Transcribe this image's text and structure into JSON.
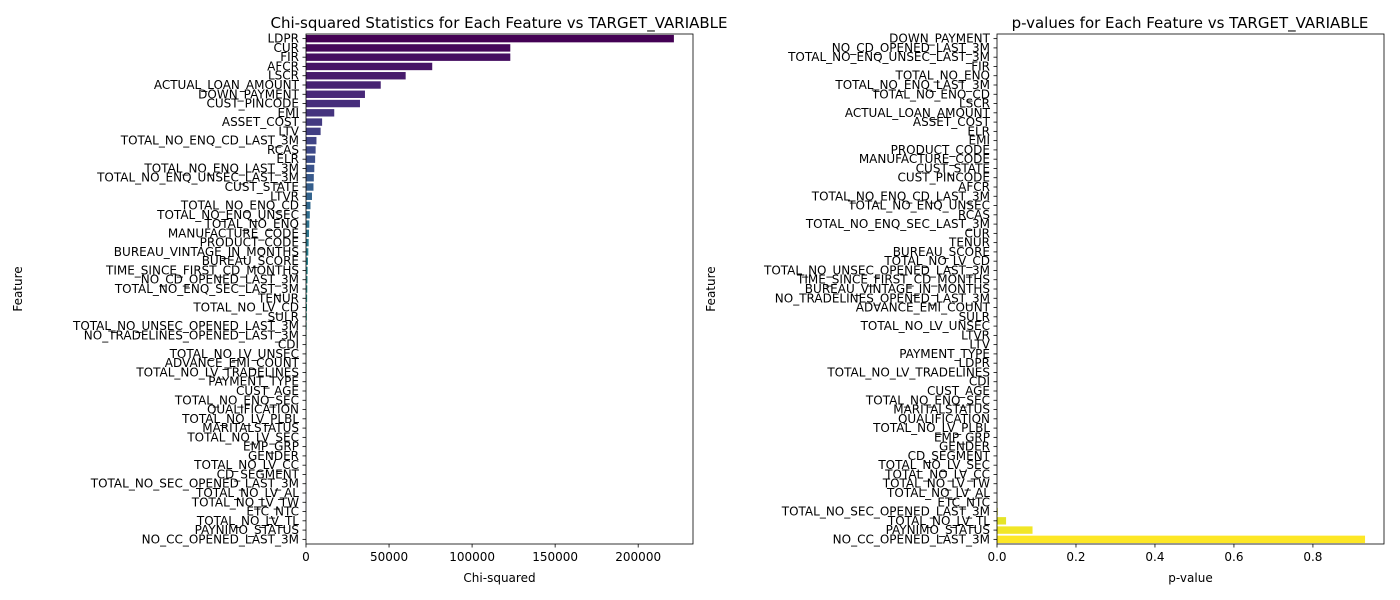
{
  "chart_data": [
    {
      "type": "bar",
      "orientation": "horizontal",
      "title": "Chi-squared Statistics for Each Feature vs TARGET_VARIABLE",
      "xlabel": "Chi-squared",
      "ylabel": "Feature",
      "xlim": [
        0,
        233000
      ],
      "xticks": [
        0,
        50000,
        100000,
        150000,
        200000
      ],
      "xtick_labels": [
        "0",
        "50000",
        "100000",
        "150000",
        "200000"
      ],
      "colormap": "viridis",
      "categories": [
        "LDPR",
        "CUR",
        "FIR",
        "AFCR",
        "LSCR",
        "ACTUAL_LOAN_AMOUNT",
        "DOWN_PAYMENT",
        "CUST_PINCODE",
        "EMI",
        "ASSET_COST",
        "LTV",
        "TOTAL_NO_ENQ_CD_LAST_3M",
        "RCAS",
        "ELR",
        "TOTAL_NO_ENQ_LAST_3M",
        "TOTAL_NO_ENQ_UNSEC_LAST_3M",
        "CUST_STATE",
        "LTVR",
        "TOTAL_NO_ENQ_CD",
        "TOTAL_NO_ENQ_UNSEC",
        "TOTAL_NO_ENQ",
        "MANUFACTURE_CODE",
        "PRODUCT_CODE",
        "BUREAU_VINTAGE_IN_MONTHS",
        "BUREAU_SCORE",
        "TIME_SINCE_FIRST_CD_MONTHS",
        "NO_CD_OPENED_LAST_3M",
        "TOTAL_NO_ENQ_SEC_LAST_3M",
        "TENUR",
        "TOTAL_NO_LV_CD",
        "SULR",
        "TOTAL_NO_UNSEC_OPENED_LAST_3M",
        "NO_TRADELINES_OPENED_LAST_3M",
        "CDI",
        "TOTAL_NO_LV_UNSEC",
        "ADVANCE_EMI_COUNT",
        "TOTAL_NO_LV_TRADELINES",
        "PAYMENT_TYPE",
        "CUST_AGE",
        "TOTAL_NO_ENQ_SEC",
        "QUALIFICATION",
        "TOTAL_NO_LV_PLBL",
        "MARITALSTATUS",
        "TOTAL_NO_LV_SEC",
        "EMP_GRP",
        "GENDER",
        "TOTAL_NO_LV_CC",
        "CD_SEGMENT",
        "TOTAL_NO_SEC_OPENED_LAST_3M",
        "TOTAL_NO_LV_AL",
        "TOTAL_NO_LV_TW",
        "ETC_NTC",
        "TOTAL_NO_LV_TL",
        "PAYNIMO_STATUS",
        "NO_CC_OPENED_LAST_3M"
      ],
      "values": [
        221500,
        123000,
        123000,
        76000,
        60000,
        45000,
        35500,
        32500,
        17000,
        9700,
        8800,
        6300,
        5800,
        5500,
        5000,
        4700,
        4500,
        3600,
        2700,
        2300,
        2000,
        1800,
        1600,
        1400,
        1200,
        1000,
        900,
        800,
        700,
        600,
        500,
        400,
        300,
        250,
        200,
        170,
        150,
        130,
        110,
        100,
        90,
        80,
        70,
        60,
        50,
        40,
        35,
        30,
        25,
        20,
        15,
        10,
        8,
        5,
        2
      ]
    },
    {
      "type": "bar",
      "orientation": "horizontal",
      "title": "p-values for Each Feature vs TARGET_VARIABLE",
      "xlabel": "p-value",
      "ylabel": "Feature",
      "xlim": [
        0,
        0.98
      ],
      "xticks": [
        0.0,
        0.2,
        0.4,
        0.6,
        0.8
      ],
      "xtick_labels": [
        "0.0",
        "0.2",
        "0.4",
        "0.6",
        "0.8"
      ],
      "colormap": "viridis",
      "categories": [
        "DOWN_PAYMENT",
        "NO_CD_OPENED_LAST_3M",
        "TOTAL_NO_ENQ_UNSEC_LAST_3M",
        "FIR",
        "TOTAL_NO_ENQ",
        "TOTAL_NO_ENQ_LAST_3M",
        "TOTAL_NO_ENQ_CD",
        "LSCR",
        "ACTUAL_LOAN_AMOUNT",
        "ASSET_COST",
        "ELR",
        "EMI",
        "PRODUCT_CODE",
        "MANUFACTURE_CODE",
        "CUST_STATE",
        "CUST_PINCODE",
        "AFCR",
        "TOTAL_NO_ENQ_CD_LAST_3M",
        "TOTAL_NO_ENQ_UNSEC",
        "RCAS",
        "TOTAL_NO_ENQ_SEC_LAST_3M",
        "CUR",
        "TENUR",
        "BUREAU_SCORE",
        "TOTAL_NO_LV_CD",
        "TOTAL_NO_UNSEC_OPENED_LAST_3M",
        "TIME_SINCE_FIRST_CD_MONTHS",
        "BUREAU_VINTAGE_IN_MONTHS",
        "NO_TRADELINES_OPENED_LAST_3M",
        "ADVANCE_EMI_COUNT",
        "SULR",
        "TOTAL_NO_LV_UNSEC",
        "LTVR",
        "LTV",
        "PAYMENT_TYPE",
        "LDPR",
        "TOTAL_NO_LV_TRADELINES",
        "CDI",
        "CUST_AGE",
        "TOTAL_NO_ENQ_SEC",
        "MARITALSTATUS",
        "QUALIFICATION",
        "TOTAL_NO_LV_PLBL",
        "EMP_GRP",
        "GENDER",
        "CD_SEGMENT",
        "TOTAL_NO_LV_SEC",
        "TOTAL_NO_LV_CC",
        "TOTAL_NO_LV_TW",
        "TOTAL_NO_LV_AL",
        "ETC_NTC",
        "TOTAL_NO_SEC_OPENED_LAST_3M",
        "TOTAL_NO_LV_TL",
        "PAYNIMO_STATUS",
        "NO_CC_OPENED_LAST_3M"
      ],
      "values": [
        0,
        0,
        0,
        0,
        0,
        0,
        0,
        0,
        0,
        0,
        0,
        0,
        0,
        0,
        0,
        0,
        0,
        0,
        0,
        0,
        0,
        0,
        0,
        0,
        0,
        0,
        0,
        0,
        0,
        0,
        0,
        0,
        0,
        0,
        0,
        0,
        0,
        0,
        0,
        0,
        0,
        0,
        0,
        0,
        0,
        0,
        0,
        0,
        0,
        0,
        0.001,
        0.002,
        0.023,
        0.09,
        0.932
      ]
    }
  ]
}
